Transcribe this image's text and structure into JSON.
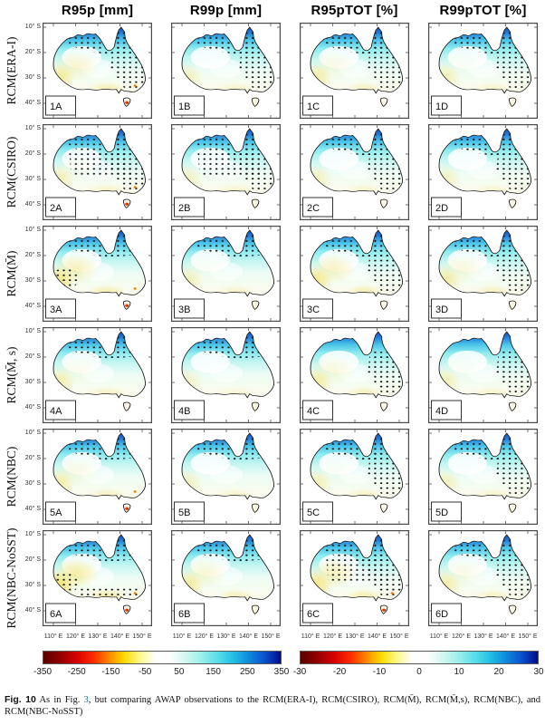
{
  "figure": {
    "columns": [
      "R95p [mm]",
      "R99p [mm]",
      "R95pTOT [%]",
      "R99pTOT [%]"
    ],
    "rows": [
      "RCM(ERA-I)",
      "RCM(CSIRO)",
      "RCM(M̄)",
      "RCM(M̄, s)",
      "RCM(NBC)",
      "RCM(NBC-NoSST)"
    ],
    "y_ticks": [
      "10° S",
      "20° S",
      "30° S",
      "40° S"
    ],
    "x_ticks": [
      "110° E",
      "120° E",
      "130° E",
      "140° E",
      "150° E"
    ],
    "panels": [
      {
        "label": "1A",
        "stipple": [
          "n",
          "e"
        ],
        "yellow": 0.75,
        "red": true
      },
      {
        "label": "1B",
        "stipple": [
          "n",
          "e"
        ],
        "yellow": 0.45,
        "red": false
      },
      {
        "label": "1C",
        "stipple": [
          "n",
          "e"
        ],
        "yellow": 0.6,
        "red": false
      },
      {
        "label": "1D",
        "stipple": [
          "n",
          "e"
        ],
        "yellow": 0.5,
        "red": false
      },
      {
        "label": "2A",
        "stipple": [
          "n",
          "c",
          "e"
        ],
        "yellow": 0.5,
        "red": true
      },
      {
        "label": "2B",
        "stipple": [
          "n",
          "c",
          "e"
        ],
        "yellow": 0.4,
        "red": false
      },
      {
        "label": "2C",
        "stipple": [
          "n",
          "e"
        ],
        "yellow": 0.45,
        "red": false
      },
      {
        "label": "2D",
        "stipple": [
          "n",
          "e"
        ],
        "yellow": 0.4,
        "red": false
      },
      {
        "label": "3A",
        "stipple": [
          "n",
          "sw"
        ],
        "yellow": 0.85,
        "red": true
      },
      {
        "label": "3B",
        "stipple": [
          "n"
        ],
        "yellow": 0.5,
        "red": false
      },
      {
        "label": "3C",
        "stipple": [
          "n",
          "e"
        ],
        "yellow": 0.8,
        "red": false
      },
      {
        "label": "3D",
        "stipple": [
          "n",
          "e"
        ],
        "yellow": 0.65,
        "red": false
      },
      {
        "label": "4A",
        "stipple": [
          "n"
        ],
        "yellow": 0.55,
        "red": false
      },
      {
        "label": "4B",
        "stipple": [
          "n"
        ],
        "yellow": 0.35,
        "red": false
      },
      {
        "label": "4C",
        "stipple": [
          "e"
        ],
        "yellow": 0.65,
        "red": false
      },
      {
        "label": "4D",
        "stipple": [
          "e"
        ],
        "yellow": 0.5,
        "red": false
      },
      {
        "label": "5A",
        "stipple": [
          "n"
        ],
        "yellow": 0.6,
        "red": true
      },
      {
        "label": "5B",
        "stipple": [
          "n"
        ],
        "yellow": 0.4,
        "red": false
      },
      {
        "label": "5C",
        "stipple": [
          "n",
          "e"
        ],
        "yellow": 0.5,
        "red": false
      },
      {
        "label": "5D",
        "stipple": [
          "n",
          "e"
        ],
        "yellow": 0.45,
        "red": false
      },
      {
        "label": "6A",
        "stipple": [
          "n",
          "sw",
          "s"
        ],
        "yellow": 1.0,
        "red": true
      },
      {
        "label": "6B",
        "stipple": [
          "n"
        ],
        "yellow": 0.7,
        "red": false
      },
      {
        "label": "6C",
        "stipple": [
          "n",
          "e",
          "c"
        ],
        "yellow": 0.85,
        "red": true
      },
      {
        "label": "6D",
        "stipple": [
          "n",
          "e"
        ],
        "yellow": 0.6,
        "red": false
      }
    ]
  },
  "colorbars": [
    {
      "name": "difference-mm",
      "ticks": [
        "-350",
        "-250",
        "-150",
        "-50",
        "50",
        "150",
        "250",
        "350"
      ]
    },
    {
      "name": "difference-percent",
      "ticks": [
        "-30",
        "-20",
        "-10",
        "0",
        "10",
        "20",
        "30"
      ]
    }
  ],
  "caption": {
    "fig_label": "Fig. 10",
    "pre": " As in Fig. ",
    "link": "3",
    "post": ", but comparing AWAP observations to the RCM(ERA-I), RCM(CSIRO), RCM(M̄), RCM(M̄,s), RCM(NBC), and RCM(NBC-NoSST)"
  },
  "colors": {
    "link": "#1b7a8f",
    "stipple": "#101010",
    "panel_border": "#4a4a4a"
  },
  "chart_data": {
    "type": "heatmap",
    "subtype": "map-grid-australia-bias",
    "grid_rows": [
      "RCM(ERA-I)",
      "RCM(CSIRO)",
      "RCM(M̄)",
      "RCM(M̄, s)",
      "RCM(NBC)",
      "RCM(NBC-NoSST)"
    ],
    "grid_columns": [
      "R95p [mm]",
      "R99p [mm]",
      "R95pTOT [%]",
      "R99pTOT [%]"
    ],
    "panel_labels": [
      [
        "1A",
        "1B",
        "1C",
        "1D"
      ],
      [
        "2A",
        "2B",
        "2C",
        "2D"
      ],
      [
        "3A",
        "3B",
        "3C",
        "3D"
      ],
      [
        "4A",
        "4B",
        "4C",
        "4D"
      ],
      [
        "5A",
        "5B",
        "5C",
        "5D"
      ],
      [
        "6A",
        "6B",
        "6C",
        "6D"
      ]
    ],
    "lat_ticks_deg_S": [
      10,
      20,
      30,
      40
    ],
    "lon_ticks_deg_E": [
      110,
      120,
      130,
      140,
      150
    ],
    "colorbar_mm": {
      "range": [
        -350,
        350
      ],
      "ticks": [
        -350,
        -250,
        -150,
        -50,
        50,
        150,
        250,
        350
      ],
      "applies_to_columns": [
        "R95p [mm]",
        "R99p [mm]"
      ]
    },
    "colorbar_percent": {
      "range": [
        -30,
        30
      ],
      "ticks": [
        -30,
        -20,
        -10,
        0,
        10,
        20,
        30
      ],
      "applies_to_columns": [
        "R95pTOT [%]",
        "R99pTOT [%]"
      ]
    },
    "colormap": "dark-red to red to yellow to white (0) to cyan to blue to navy",
    "annotations": "black stipple dots mark grid points; blue = positive bias (north), yellow/red = negative bias (south-west, south-east, Tasmania)"
  }
}
